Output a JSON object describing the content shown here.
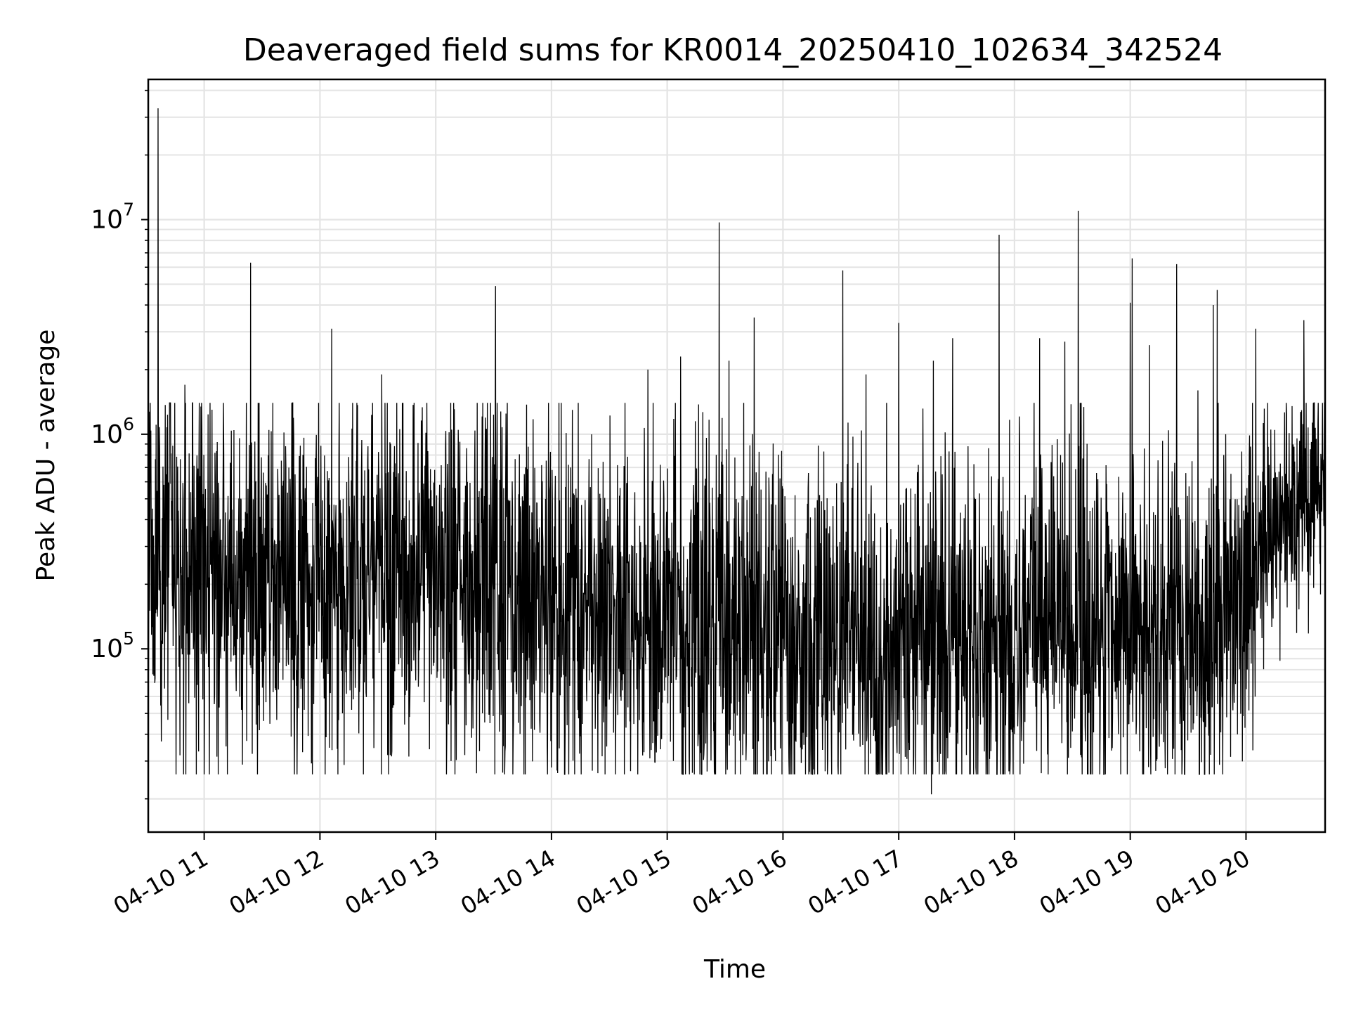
{
  "chart_data": {
    "type": "line",
    "title": "Deaveraged field sums for KR0014_20250410_102634_342524",
    "xlabel": "Time",
    "ylabel": "Peak ADU - average",
    "x_range": [
      "2025-04-10 10:31",
      "2025-04-10 20:41"
    ],
    "y_scale": "log",
    "ylim": [
      14000,
      45000000
    ],
    "grid": true,
    "legend": "none",
    "x_ticks": [
      {
        "label": "04-10 11",
        "t": "2025-04-10 11:00"
      },
      {
        "label": "04-10 12",
        "t": "2025-04-10 12:00"
      },
      {
        "label": "04-10 13",
        "t": "2025-04-10 13:00"
      },
      {
        "label": "04-10 14",
        "t": "2025-04-10 14:00"
      },
      {
        "label": "04-10 15",
        "t": "2025-04-10 15:00"
      },
      {
        "label": "04-10 16",
        "t": "2025-04-10 16:00"
      },
      {
        "label": "04-10 17",
        "t": "2025-04-10 17:00"
      },
      {
        "label": "04-10 18",
        "t": "2025-04-10 18:00"
      },
      {
        "label": "04-10 19",
        "t": "2025-04-10 19:00"
      },
      {
        "label": "04-10 20",
        "t": "2025-04-10 20:00"
      }
    ],
    "y_ticks": [
      {
        "base": "10",
        "exp": "5",
        "value": 100000
      },
      {
        "base": "10",
        "exp": "6",
        "value": 1000000
      },
      {
        "base": "10",
        "exp": "7",
        "value": 10000000
      }
    ],
    "series_color": "#000000",
    "baseline": [
      [
        "2025-04-10 10:31",
        300000
      ],
      [
        "2025-04-10 11:00",
        220000
      ],
      [
        "2025-04-10 11:30",
        200000
      ],
      [
        "2025-04-10 12:00",
        220000
      ],
      [
        "2025-04-10 12:30",
        210000
      ],
      [
        "2025-04-10 13:00",
        200000
      ],
      [
        "2025-04-10 13:30",
        180000
      ],
      [
        "2025-04-10 14:00",
        160000
      ],
      [
        "2025-04-10 14:30",
        150000
      ],
      [
        "2025-04-10 15:00",
        130000
      ],
      [
        "2025-04-10 15:30",
        120000
      ],
      [
        "2025-04-10 16:00",
        115000
      ],
      [
        "2025-04-10 16:30",
        110000
      ],
      [
        "2025-04-10 17:00",
        110000
      ],
      [
        "2025-04-10 17:30",
        115000
      ],
      [
        "2025-04-10 18:00",
        120000
      ],
      [
        "2025-04-10 18:30",
        130000
      ],
      [
        "2025-04-10 19:00",
        120000
      ],
      [
        "2025-04-10 19:30",
        110000
      ],
      [
        "2025-04-10 19:55",
        140000
      ],
      [
        "2025-04-10 20:10",
        300000
      ],
      [
        "2025-04-10 20:25",
        450000
      ],
      [
        "2025-04-10 20:41",
        600000
      ]
    ],
    "spikes": [
      [
        "2025-04-10 10:36",
        33000000
      ],
      [
        "2025-04-10 10:50",
        1700000
      ],
      [
        "2025-04-10 11:04",
        1300000
      ],
      [
        "2025-04-10 11:24",
        6300000
      ],
      [
        "2025-04-10 12:06",
        3100000
      ],
      [
        "2025-04-10 12:32",
        1900000
      ],
      [
        "2025-04-10 13:31",
        4900000
      ],
      [
        "2025-04-10 14:50",
        2000000
      ],
      [
        "2025-04-10 15:07",
        2300000
      ],
      [
        "2025-04-10 15:27",
        9700000
      ],
      [
        "2025-04-10 15:32",
        2200000
      ],
      [
        "2025-04-10 15:45",
        3500000
      ],
      [
        "2025-04-10 16:31",
        5800000
      ],
      [
        "2025-04-10 16:43",
        1900000
      ],
      [
        "2025-04-10 17:00",
        3300000
      ],
      [
        "2025-04-10 17:18",
        2200000
      ],
      [
        "2025-04-10 17:28",
        2800000
      ],
      [
        "2025-04-10 17:52",
        8500000
      ],
      [
        "2025-04-10 18:13",
        2800000
      ],
      [
        "2025-04-10 18:26",
        2700000
      ],
      [
        "2025-04-10 18:33",
        11000000
      ],
      [
        "2025-04-10 19:00",
        4100000
      ],
      [
        "2025-04-10 19:01",
        6600000
      ],
      [
        "2025-04-10 19:10",
        2600000
      ],
      [
        "2025-04-10 19:24",
        6200000
      ],
      [
        "2025-04-10 19:35",
        1600000
      ],
      [
        "2025-04-10 19:43",
        4000000
      ],
      [
        "2025-04-10 19:45",
        4700000
      ],
      [
        "2025-04-10 20:05",
        3100000
      ],
      [
        "2025-04-10 20:30",
        3400000
      ]
    ],
    "dips": [
      [
        "2025-04-10 10:38",
        80000
      ],
      [
        "2025-04-10 11:51",
        33000
      ],
      [
        "2025-04-10 12:35",
        32000
      ],
      [
        "2025-04-10 13:08",
        30000
      ],
      [
        "2025-04-10 13:15",
        32000
      ],
      [
        "2025-04-10 14:00",
        28000
      ],
      [
        "2025-04-10 14:48",
        33000
      ],
      [
        "2025-04-10 15:56",
        30000
      ],
      [
        "2025-04-10 16:03",
        31000
      ],
      [
        "2025-04-10 16:25",
        38000
      ],
      [
        "2025-04-10 16:40",
        35000
      ],
      [
        "2025-04-10 17:17",
        21000
      ],
      [
        "2025-04-10 17:35",
        32000
      ],
      [
        "2025-04-10 18:00",
        40000
      ],
      [
        "2025-04-10 19:03",
        40000
      ],
      [
        "2025-04-10 19:15",
        35000
      ],
      [
        "2025-04-10 19:50",
        48000
      ]
    ]
  }
}
